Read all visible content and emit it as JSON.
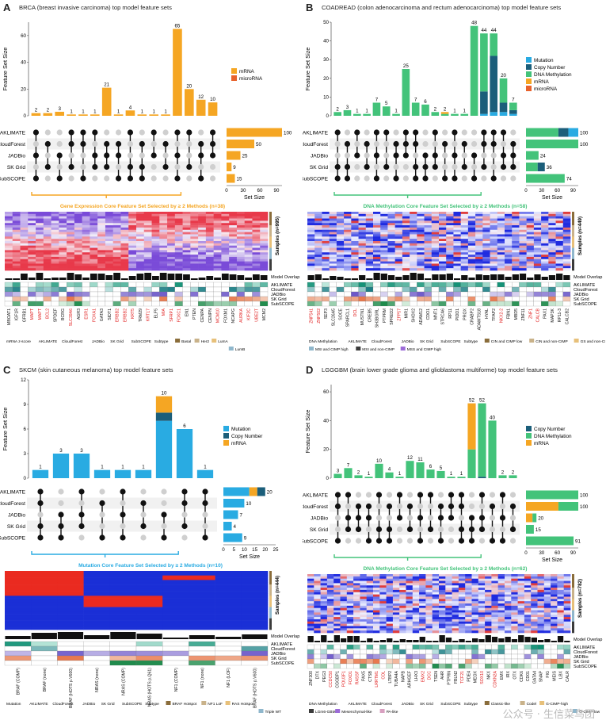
{
  "panels": [
    {
      "letter": "A",
      "title": "BRCA (breast invasive carcinoma) top model feature sets",
      "ylabel": "Feature Set Size",
      "yticks": [
        "0",
        "20",
        "40",
        "60"
      ],
      "ymax": 70,
      "bars": [
        {
          "total": 2,
          "segments": [
            2,
            0,
            0
          ]
        },
        {
          "total": 2,
          "segments": [
            2,
            0,
            0
          ]
        },
        {
          "total": 3,
          "segments": [
            3,
            0,
            0
          ]
        },
        {
          "total": 1,
          "segments": [
            1,
            0,
            0
          ]
        },
        {
          "total": 1,
          "segments": [
            1,
            0,
            0
          ]
        },
        {
          "total": 1,
          "segments": [
            1,
            0,
            0
          ]
        },
        {
          "total": 21,
          "segments": [
            21,
            0,
            0
          ]
        },
        {
          "total": 1,
          "segments": [
            1,
            0,
            0
          ]
        },
        {
          "total": 4,
          "segments": [
            4,
            0,
            0
          ]
        },
        {
          "total": 1,
          "segments": [
            1,
            0,
            0
          ]
        },
        {
          "total": 1,
          "segments": [
            1,
            0,
            0
          ]
        },
        {
          "total": 1,
          "segments": [
            1,
            0,
            0
          ]
        },
        {
          "total": 65,
          "segments": [
            65,
            0,
            0
          ]
        },
        {
          "total": 20,
          "segments": [
            20,
            0,
            0
          ]
        },
        {
          "total": 12,
          "segments": [
            12,
            0,
            0
          ]
        },
        {
          "total": 10,
          "segments": [
            10,
            0,
            0
          ]
        }
      ],
      "bar_colors": [
        "#f5a623",
        "#e8622c",
        "#b33"
      ],
      "legend": [
        {
          "label": "mRNA",
          "color": "#f5a623"
        },
        {
          "label": "microRNA",
          "color": "#e8622c"
        }
      ],
      "methods": [
        "AKLIMATE",
        "CloudForest",
        "JADBio",
        "SK Grid",
        "SubSCOPE"
      ],
      "set_sizes": [
        100,
        50,
        25,
        9,
        15
      ],
      "set_size_max": 100,
      "set_size_ticks": [
        "0",
        "30",
        "60",
        "90"
      ],
      "set_size_label": "Set Size",
      "set_bar_colors": [
        [
          "#f5a623"
        ],
        [
          "#f5a623"
        ],
        [
          "#f5a623"
        ],
        [
          "#f5a623"
        ],
        [
          "#f5a623"
        ]
      ],
      "core_title": "Gene Expression Core Feature Set Selected by ≥ 2 Methods (n=38)",
      "core_color": "#f5a623",
      "samples_label": "Samples (n=995)",
      "heatmap_kind": "expr",
      "model_overlap_label": "Model Overlap",
      "annot_methods": [
        "AKLIMATE",
        "CloudForest",
        "JADBio",
        "SK Grid",
        "SubSCOPE"
      ],
      "genes": [
        "MBOAT1",
        "IGF1R",
        "GFRB1",
        "MAPT",
        "MAPT",
        "BCL2",
        "SPDEF",
        "BCRG",
        "SLC39A6",
        "AGR3",
        "ESR1",
        "FOXA1",
        "GATA3",
        "SIDT1",
        "ERBB2",
        "ERBB2",
        "KRT5",
        "TRM29",
        "KRT17",
        "ELF5",
        "MIA",
        "SFRP1",
        "FOXC1",
        "EN1",
        "PTEN",
        "CENPA",
        "CENPN",
        "MCM10",
        "FOXM1",
        "NCAPG",
        "AURKA",
        "KIF2C",
        "UBE2T",
        "MCM2"
      ],
      "gene_red": [
        3,
        4,
        5,
        8,
        10,
        11,
        14,
        15,
        16,
        18,
        20,
        21,
        22,
        27,
        30,
        31,
        32
      ],
      "legend_bottom": [
        "mRNA z-score",
        "AKLIMATE",
        "CloudForest",
        "JADBio",
        "SK Grid",
        "SubSCOPE",
        "Subtype",
        "Basal",
        "Her2",
        "LumA",
        "LumB"
      ]
    },
    {
      "letter": "B",
      "title": "COADREAD (colon adenocarcinoma and rectum adenocarcinoma) top model feature sets",
      "ylabel": "Feature Set Size",
      "yticks": [
        "0",
        "10",
        "20",
        "30",
        "40",
        "50"
      ],
      "ymax": 50,
      "bars": [
        {
          "total": 2,
          "segments": [
            0,
            0,
            2,
            0,
            0
          ]
        },
        {
          "total": 3,
          "segments": [
            0,
            0,
            3,
            0,
            0
          ]
        },
        {
          "total": 1,
          "segments": [
            0,
            0,
            1,
            0,
            0
          ]
        },
        {
          "total": 1,
          "segments": [
            0,
            0,
            1,
            0,
            0
          ]
        },
        {
          "total": 7,
          "segments": [
            0,
            0,
            7,
            0,
            0
          ]
        },
        {
          "total": 5,
          "segments": [
            0,
            0,
            5,
            0,
            0
          ]
        },
        {
          "total": 1,
          "segments": [
            0,
            0,
            1,
            0,
            0
          ]
        },
        {
          "total": 25,
          "segments": [
            0,
            0,
            25,
            0,
            0
          ]
        },
        {
          "total": 7,
          "segments": [
            0,
            0,
            7,
            0,
            0
          ]
        },
        {
          "total": 6,
          "segments": [
            0,
            0,
            6,
            0,
            0
          ]
        },
        {
          "total": 2,
          "segments": [
            0,
            0,
            2,
            0,
            0
          ]
        },
        {
          "total": 2,
          "segments": [
            0,
            0,
            1,
            1,
            0
          ]
        },
        {
          "total": 1,
          "segments": [
            0,
            0,
            1,
            0,
            0
          ]
        },
        {
          "total": 1,
          "segments": [
            0,
            0,
            1,
            0,
            0
          ]
        },
        {
          "total": 48,
          "segments": [
            0,
            0,
            48,
            0,
            0
          ]
        },
        {
          "total": 44,
          "segments": [
            1,
            12,
            31,
            0,
            0
          ]
        },
        {
          "total": 44,
          "segments": [
            2,
            30,
            12,
            0,
            0
          ]
        },
        {
          "total": 20,
          "segments": [
            2,
            5,
            13,
            0,
            0
          ]
        },
        {
          "total": 7,
          "segments": [
            1,
            2,
            4,
            0,
            0
          ]
        }
      ],
      "bar_colors": [
        "#29abe2",
        "#1b5e7a",
        "#43c37a",
        "#f5a623",
        "#e8622c"
      ],
      "legend": [
        {
          "label": "Mutation",
          "color": "#29abe2"
        },
        {
          "label": "Copy Number",
          "color": "#1b5e7a"
        },
        {
          "label": "DNA Methylation",
          "color": "#43c37a"
        },
        {
          "label": "mRNA",
          "color": "#f5a623"
        },
        {
          "label": "microRNA",
          "color": "#e8622c"
        }
      ],
      "methods": [
        "AKLIMATE",
        "CloudForest",
        "JADBio",
        "SK Grid",
        "SubSCOPE"
      ],
      "set_sizes": [
        100,
        100,
        24,
        36,
        74
      ],
      "set_size_max": 100,
      "set_size_ticks": [
        "0",
        "30",
        "60",
        "90"
      ],
      "set_size_label": "Set Size",
      "set_bar_colors": [
        [
          "#43c37a",
          "#1b5e7a",
          "#29abe2"
        ],
        [
          "#43c37a"
        ],
        [
          "#43c37a"
        ],
        [
          "#43c37a",
          "#1b5e7a"
        ],
        [
          "#43c37a"
        ]
      ],
      "core_title": "DNA Methylation Core Feature Set Selected by ≥ 2 Methods (n=58)",
      "core_color": "#43c37a",
      "samples_label": "Samples (n=449)",
      "heatmap_kind": "meth",
      "model_overlap_label": "Model Overlap",
      "annot_methods": [
        "AKLIMATE",
        "CloudForest",
        "JADBio",
        "SK Grid",
        "SubSCOPE"
      ],
      "genes": [
        "ZNF541",
        "ZNF502",
        "SEP3",
        "SLC26A5",
        "SOCE",
        "SPARCL1",
        "DCL",
        "MUSTN1",
        "CREB5",
        "SH3BGRL",
        "PTPRM",
        "SPRED2",
        "ZFP57",
        "MIR1",
        "SHOX2",
        "ADAM12",
        "CDO1",
        "MNT1",
        "STRCA6",
        "RP11",
        "PIDD1",
        "PROX",
        "CRABP2",
        "ADAMTS18",
        "HYAL",
        "TFAP2",
        "NKX2-2",
        "FBN1",
        "MBD5",
        "ZNF11",
        "ZNF1",
        "CALCB",
        "PAX1",
        "MAP3K",
        "RP11-3",
        "CALCB2"
      ],
      "gene_red": [
        0,
        1,
        6,
        12,
        26,
        30,
        31
      ],
      "legend_bottom": [
        "DNA Methylation",
        "AKLIMATE",
        "CloudForest",
        "JADBio",
        "SK Grid",
        "SubSCOPE",
        "Subtype",
        "CIN and CIMP low",
        "CIN and non-CIMP",
        "GS and non-CIMP",
        "MSI and CIMP high",
        "MSI and non-CIMP",
        "MSS and CIMP high"
      ]
    },
    {
      "letter": "C",
      "title": "SKCM (skin cutaneous melanoma) top model feature sets",
      "ylabel": "Feature Set Size",
      "yticks": [
        "0",
        "3",
        "6",
        "9",
        "12"
      ],
      "ymax": 12,
      "bars": [
        {
          "total": 1,
          "segments": [
            1,
            0,
            0
          ]
        },
        {
          "total": 3,
          "segments": [
            3,
            0,
            0
          ]
        },
        {
          "total": 3,
          "segments": [
            3,
            0,
            0
          ]
        },
        {
          "total": 1,
          "segments": [
            1,
            0,
            0
          ]
        },
        {
          "total": 1,
          "segments": [
            1,
            0,
            0
          ]
        },
        {
          "total": 1,
          "segments": [
            1,
            0,
            0
          ]
        },
        {
          "total": 10,
          "segments": [
            7,
            1,
            2
          ]
        },
        {
          "total": 6,
          "segments": [
            6,
            0,
            0
          ]
        },
        {
          "total": 1,
          "segments": [
            1,
            0,
            0
          ]
        }
      ],
      "bar_colors": [
        "#29abe2",
        "#1b5e7a",
        "#f5a623"
      ],
      "legend": [
        {
          "label": "Mutation",
          "color": "#29abe2"
        },
        {
          "label": "Copy Number",
          "color": "#1b5e7a"
        },
        {
          "label": "mRNA",
          "color": "#f5a623"
        }
      ],
      "methods": [
        "AKLIMATE",
        "CloudForest",
        "JADBio",
        "SK Grid",
        "SubSCOPE"
      ],
      "set_sizes": [
        20,
        10,
        7,
        4,
        9
      ],
      "set_size_max": 25,
      "set_size_ticks": [
        "0",
        "5",
        "10",
        "15",
        "20",
        "25"
      ],
      "set_size_label": "Set Size",
      "set_bar_colors": [
        [
          "#29abe2",
          "#f5a623",
          "#1b5e7a"
        ],
        [
          "#29abe2"
        ],
        [
          "#29abe2"
        ],
        [
          "#29abe2"
        ],
        [
          "#29abe2"
        ]
      ],
      "core_title": "Mutation Core Feature Set Selected by ≥ 2 Methods (n=10)",
      "core_color": "#29abe2",
      "samples_label": "Samples (n=444)",
      "heatmap_kind": "mut",
      "model_overlap_label": "Model Overlap",
      "annot_methods": [
        "AKLIMATE",
        "CloudForest",
        "JADBio",
        "SK Grid",
        "SubSCOPE"
      ],
      "genes": [
        "BRAF (COMP)",
        "BRAF (none)",
        "BRAF (HOTS p.V600)",
        "NRAS (none)",
        "NRAS (COMP)",
        "NRAS (HOTS p.Q61)",
        "NF1 (COMP)",
        "NF1 (none)",
        "NF1 (LOF)",
        "BRAF (HOTS p.V600)"
      ],
      "gene_red": [],
      "legend_bottom": [
        "Mutation",
        "AKLIMATE",
        "CloudForest",
        "JADBio",
        "SK Grid",
        "SubSCOPE",
        "Subtype",
        "BRAF Hotspot",
        "NF1 LoF",
        "RAS Hotspot",
        "Triple WT"
      ]
    },
    {
      "letter": "D",
      "title": "LGGGBM (brain lower grade glioma and glioblastoma multiforme) top model feature sets",
      "ylabel": "Feature Set Size",
      "yticks": [
        "0",
        "20",
        "40",
        "60"
      ],
      "ymax": 65,
      "bars": [
        {
          "total": 3,
          "segments": [
            0,
            3,
            0
          ]
        },
        {
          "total": 7,
          "segments": [
            0,
            7,
            0
          ]
        },
        {
          "total": 2,
          "segments": [
            0,
            2,
            0
          ]
        },
        {
          "total": 1,
          "segments": [
            0,
            1,
            0
          ]
        },
        {
          "total": 10,
          "segments": [
            0,
            10,
            0
          ]
        },
        {
          "total": 4,
          "segments": [
            0,
            4,
            0
          ]
        },
        {
          "total": 1,
          "segments": [
            0,
            1,
            0
          ]
        },
        {
          "total": 12,
          "segments": [
            0,
            12,
            0
          ]
        },
        {
          "total": 11,
          "segments": [
            0,
            11,
            0
          ]
        },
        {
          "total": 6,
          "segments": [
            0,
            6,
            0
          ]
        },
        {
          "total": 5,
          "segments": [
            0,
            5,
            0
          ]
        },
        {
          "total": 1,
          "segments": [
            0,
            1,
            0
          ]
        },
        {
          "total": 1,
          "segments": [
            0,
            1,
            0
          ]
        },
        {
          "total": 52,
          "segments": [
            0,
            20,
            32
          ]
        },
        {
          "total": 52,
          "segments": [
            1,
            51,
            0
          ]
        },
        {
          "total": 40,
          "segments": [
            0,
            40,
            0
          ]
        },
        {
          "total": 2,
          "segments": [
            0,
            2,
            0
          ]
        },
        {
          "total": 2,
          "segments": [
            0,
            2,
            0
          ]
        }
      ],
      "bar_colors": [
        "#1b5e7a",
        "#43c37a",
        "#f5a623"
      ],
      "legend": [
        {
          "label": "Copy Number",
          "color": "#1b5e7a"
        },
        {
          "label": "DNA Methylation",
          "color": "#43c37a"
        },
        {
          "label": "mRNA",
          "color": "#f5a623"
        }
      ],
      "methods": [
        "AKLIMATE",
        "CloudForest",
        "JADBio",
        "SK Grid",
        "SubSCOPE"
      ],
      "set_sizes": [
        100,
        100,
        20,
        15,
        91
      ],
      "set_size_max": 100,
      "set_size_ticks": [
        "0",
        "30",
        "60",
        "90"
      ],
      "set_size_label": "Set Size",
      "set_bar_colors": [
        [
          "#43c37a"
        ],
        [
          "#f5a623",
          "#43c37a"
        ],
        [
          "#f5a623",
          "#43c37a"
        ],
        [
          "#43c37a"
        ],
        [
          "#43c37a"
        ]
      ],
      "core_title": "DNA Methylation Core Feature Set Selected by ≥ 2 Methods (n=62)",
      "core_color": "#43c37a",
      "samples_label": "Samples (n=782)",
      "heatmap_kind": "meth2",
      "model_overlap_label": "Model Overlap",
      "annot_methods": [
        "AKLIMATE",
        "CloudForest",
        "JADBio",
        "SK Grid",
        "SubSCOPE"
      ],
      "genes": [
        "ZNF300",
        "DTX",
        "PEG3",
        "CCDC50",
        "CGGBP1",
        "POU3F1",
        "FOXD1",
        "RASSF",
        "PAX5",
        "CTSB",
        "LRRTM1",
        "COL",
        "LTBP2",
        "TUBA4A",
        "NAPB",
        "ARHGEF",
        "LHX3",
        "EMX2",
        "DCC",
        "TSEN",
        "AHR",
        "PTPRN",
        "FBLN2",
        "TCF21",
        "PDE4",
        "MEOX",
        "SOX10",
        "NKX",
        "CDKN2A",
        "EMX",
        "IRX",
        "OTX",
        "CDK6",
        "CD01",
        "GATA4",
        "SNAP",
        "FIG",
        "MEIS",
        "LBX",
        "CALR"
      ],
      "gene_red": [
        3,
        5,
        6,
        7,
        10,
        11,
        17,
        18,
        23,
        26,
        28
      ],
      "legend_bottom": [
        "DNA Methylation",
        "AKLIMATE",
        "CloudForest",
        "JADBio",
        "SK Grid",
        "SubSCOPE",
        "Subtype",
        "Classic-like",
        "Codel",
        "G-CIMP-high",
        "G-CIMP-low",
        "LGm6-GBM",
        "Mesenchymal-like",
        "PA-like"
      ]
    }
  ],
  "watermark": "公众号 · 生信菜鸟团"
}
